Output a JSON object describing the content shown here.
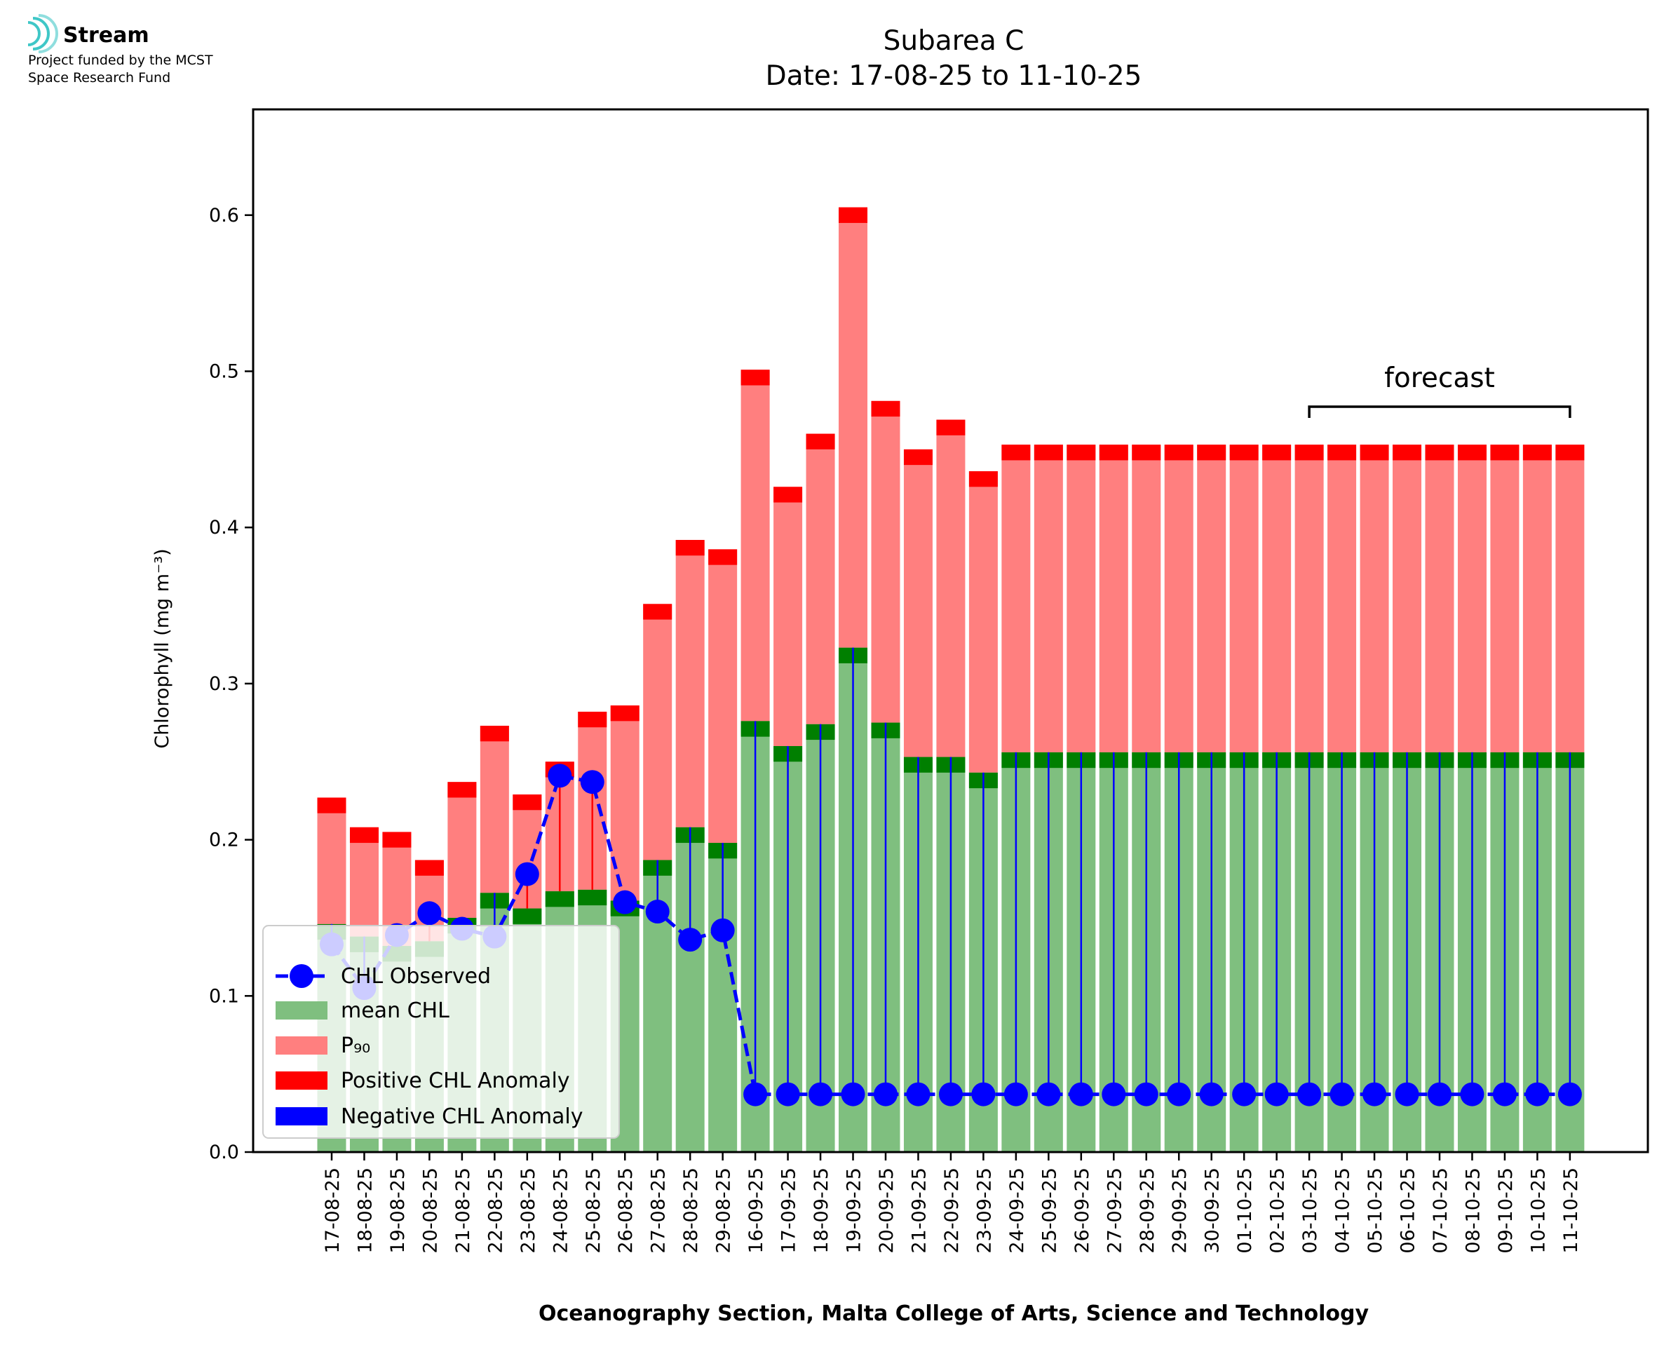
{
  "logo": {
    "name": "Stream",
    "line1": "Project funded by the MCST",
    "line2": "Space Research Fund"
  },
  "chart_data": {
    "type": "bar",
    "title": "Subarea C",
    "subtitle": "Date: 17-08-25 to 11-10-25",
    "xlabel": "Oceanography Section, Malta College of Arts, Science and Technology",
    "ylabel": "Chlorophyll (mg m⁻³)",
    "ylim": [
      0,
      0.665
    ],
    "yticks": [
      0.0,
      0.1,
      0.2,
      0.3,
      0.4,
      0.5,
      0.6
    ],
    "ytick_labels": [
      "0.0",
      "0.1",
      "0.2",
      "0.3",
      "0.4",
      "0.5",
      "0.6"
    ],
    "categories": [
      "17-08-25",
      "18-08-25",
      "19-08-25",
      "20-08-25",
      "21-08-25",
      "22-08-25",
      "23-08-25",
      "24-08-25",
      "25-08-25",
      "26-08-25",
      "27-08-25",
      "28-08-25",
      "29-08-25",
      "16-09-25",
      "17-09-25",
      "18-09-25",
      "19-09-25",
      "20-09-25",
      "21-09-25",
      "22-09-25",
      "23-09-25",
      "24-09-25",
      "25-09-25",
      "26-09-25",
      "27-09-25",
      "28-09-25",
      "29-09-25",
      "30-09-25",
      "01-10-25",
      "02-10-25",
      "03-10-25",
      "04-10-25",
      "05-10-25",
      "06-10-25",
      "07-10-25",
      "08-10-25",
      "09-10-25",
      "10-10-25",
      "11-10-25"
    ],
    "series": [
      {
        "name": "mean CHL",
        "color": "#7fbf7f",
        "values": [
          0.146,
          0.138,
          0.132,
          0.135,
          0.15,
          0.166,
          0.156,
          0.167,
          0.168,
          0.161,
          0.187,
          0.208,
          0.198,
          0.276,
          0.26,
          0.274,
          0.323,
          0.275,
          0.253,
          0.253,
          0.243,
          0.256,
          0.256,
          0.256,
          0.256,
          0.256,
          0.256,
          0.256,
          0.256,
          0.256,
          0.256,
          0.256,
          0.256,
          0.256,
          0.256,
          0.256,
          0.256,
          0.256,
          0.256
        ]
      },
      {
        "name": "P₉₀",
        "color": "#ff7f7f",
        "values": [
          0.227,
          0.208,
          0.205,
          0.187,
          0.237,
          0.273,
          0.229,
          0.25,
          0.282,
          0.286,
          0.351,
          0.392,
          0.386,
          0.501,
          0.426,
          0.46,
          0.605,
          0.481,
          0.45,
          0.469,
          0.436,
          0.453,
          0.453,
          0.453,
          0.453,
          0.453,
          0.453,
          0.453,
          0.453,
          0.453,
          0.453,
          0.453,
          0.453,
          0.453,
          0.453,
          0.453,
          0.453,
          0.453,
          0.453
        ]
      },
      {
        "name": "CHL Observed",
        "color": "#0000ff",
        "values": [
          0.133,
          0.105,
          0.139,
          0.153,
          0.143,
          0.138,
          0.178,
          0.241,
          0.237,
          0.16,
          0.154,
          0.136,
          0.142,
          0.037,
          0.037,
          0.037,
          0.037,
          0.037,
          0.037,
          0.037,
          0.037,
          0.037,
          0.037,
          0.037,
          0.037,
          0.037,
          0.037,
          0.037,
          0.037,
          0.037,
          0.037,
          0.037,
          0.037,
          0.037,
          0.037,
          0.037,
          0.037,
          0.037,
          0.037
        ]
      }
    ],
    "cap_thickness": 0.01,
    "forecast_start_index": 30,
    "forecast_label": "forecast",
    "legend": {
      "position": "lower-left",
      "entries": [
        "CHL Observed",
        "mean CHL",
        "P₉₀",
        "Positive CHL Anomaly",
        "Negative CHL Anomaly"
      ]
    },
    "colors": {
      "mean": "#7fbf7f",
      "mean_cap": "#007f00",
      "p90": "#ff7f7f",
      "p90_cap": "#ff0000",
      "observed": "#0000ff",
      "positive_anomaly": "#ff0000",
      "negative_anomaly": "#0000ff"
    }
  }
}
